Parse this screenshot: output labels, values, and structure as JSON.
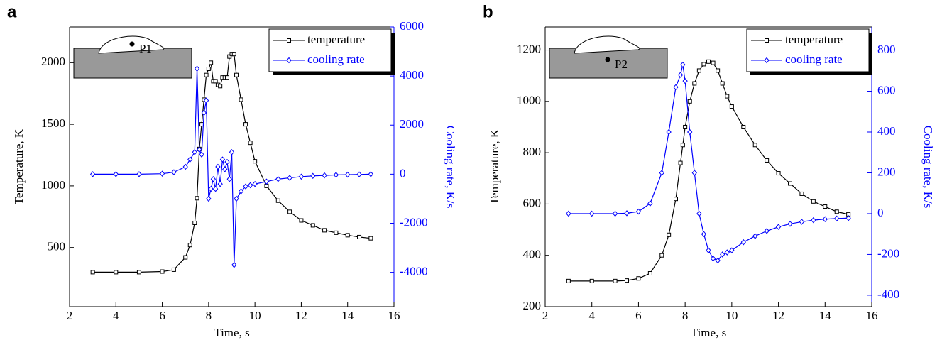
{
  "chart_data": [
    {
      "type": "line",
      "label": "a",
      "inset_label": "P1",
      "xlabel": "Time, s",
      "ylabel": "Temperature, K",
      "y2label": "Cooling rate, K/s",
      "legend": "upper right",
      "x": [
        3,
        4,
        5,
        6,
        6.5,
        7,
        7.2,
        7.4,
        7.5,
        7.6,
        7.7,
        7.8,
        7.9,
        8,
        8.1,
        8.2,
        8.3,
        8.4,
        8.5,
        8.6,
        8.7,
        8.8,
        8.9,
        9,
        9.1,
        9.2,
        9.4,
        9.6,
        9.8,
        10,
        10.5,
        11,
        11.5,
        12,
        12.5,
        13,
        13.5,
        14,
        14.5,
        15
      ],
      "series": [
        {
          "name": "temperature",
          "color": "#000000",
          "marker": "square",
          "values": [
            300,
            300,
            300,
            305,
            320,
            420,
            520,
            700,
            900,
            1300,
            1500,
            1700,
            1900,
            1950,
            2000,
            1850,
            1850,
            1820,
            1810,
            1880,
            1880,
            1880,
            2050,
            2070,
            2070,
            1900,
            1700,
            1500,
            1350,
            1200,
            1000,
            880,
            790,
            720,
            680,
            640,
            620,
            600,
            585,
            575
          ]
        },
        {
          "name": "cooling rate",
          "color": "#0000ff",
          "marker": "diamond",
          "axis": "y2",
          "values": [
            0,
            0,
            0,
            20,
            80,
            300,
            600,
            900,
            4300,
            1000,
            800,
            2500,
            3000,
            -1000,
            -600,
            -200,
            -600,
            300,
            -400,
            600,
            200,
            500,
            -200,
            900,
            -3700,
            -1000,
            -700,
            -500,
            -450,
            -400,
            -300,
            -200,
            -150,
            -100,
            -70,
            -50,
            -30,
            -20,
            -10,
            0
          ]
        }
      ],
      "xlim": [
        2,
        16
      ],
      "xticks": [
        2,
        4,
        6,
        8,
        10,
        12,
        14,
        16
      ],
      "ylim": [
        20,
        2290
      ],
      "yticks": [
        500,
        1000,
        1500,
        2000
      ],
      "y2lim": [
        -5400,
        6000
      ],
      "y2ticks": [
        -4000,
        -2000,
        0,
        2000,
        4000,
        6000
      ]
    },
    {
      "type": "line",
      "label": "b",
      "inset_label": "P2",
      "xlabel": "Time, s",
      "ylabel": "Temperature, K",
      "y2label": "Cooling rate, K/s",
      "legend": "upper right",
      "x": [
        3,
        4,
        5,
        5.5,
        6,
        6.5,
        7,
        7.3,
        7.6,
        7.8,
        7.9,
        8,
        8.2,
        8.4,
        8.6,
        8.8,
        9,
        9.2,
        9.4,
        9.6,
        9.8,
        10,
        10.5,
        11,
        11.5,
        12,
        12.5,
        13,
        13.5,
        14,
        14.5,
        15
      ],
      "series": [
        {
          "name": "temperature",
          "color": "#000000",
          "marker": "square",
          "values": [
            300,
            300,
            300,
            302,
            310,
            330,
            400,
            480,
            620,
            760,
            830,
            900,
            1000,
            1070,
            1120,
            1145,
            1155,
            1150,
            1120,
            1070,
            1020,
            980,
            900,
            830,
            770,
            720,
            680,
            640,
            610,
            590,
            570,
            560
          ]
        },
        {
          "name": "cooling rate",
          "color": "#0000ff",
          "marker": "diamond",
          "axis": "y2",
          "values": [
            0,
            0,
            0,
            2,
            10,
            50,
            200,
            400,
            620,
            680,
            730,
            650,
            400,
            200,
            0,
            -100,
            -180,
            -220,
            -230,
            -200,
            -190,
            -180,
            -140,
            -110,
            -85,
            -65,
            -50,
            -40,
            -32,
            -27,
            -24,
            -22
          ]
        }
      ],
      "xlim": [
        2,
        16
      ],
      "xticks": [
        2,
        4,
        6,
        8,
        10,
        12,
        14,
        16
      ],
      "ylim": [
        200,
        1290
      ],
      "yticks": [
        200,
        400,
        600,
        800,
        1000,
        1200
      ],
      "y2lim": [
        -456,
        915
      ],
      "y2ticks": [
        -400,
        -200,
        0,
        200,
        400,
        600,
        800
      ]
    }
  ]
}
